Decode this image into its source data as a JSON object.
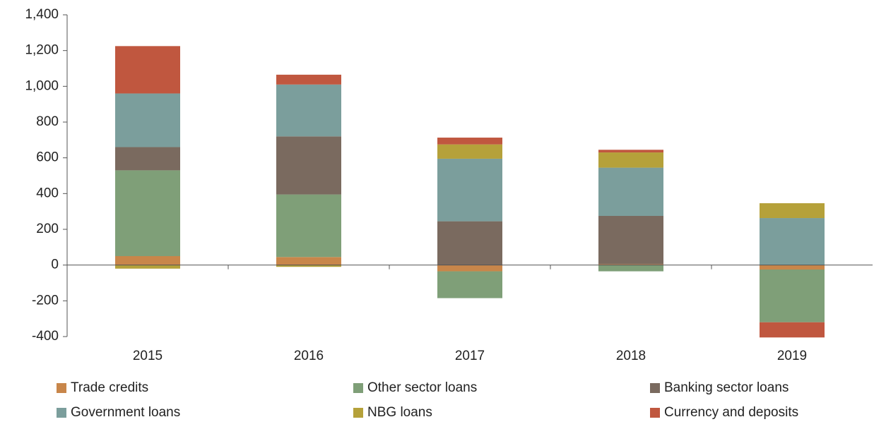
{
  "chart_data": {
    "type": "stacked_bar",
    "categories": [
      "2015",
      "2016",
      "2017",
      "2018",
      "2019"
    ],
    "series": [
      {
        "name": "Trade credits",
        "color": "#c8864a",
        "values": [
          50,
          45,
          -35,
          5,
          -25
        ]
      },
      {
        "name": "Other sector loans",
        "color": "#7f9f78",
        "values": [
          480,
          350,
          -150,
          -35,
          -295
        ]
      },
      {
        "name": "Banking sector loans",
        "color": "#7a6a5f",
        "values": [
          130,
          325,
          245,
          270,
          0
        ]
      },
      {
        "name": "Government loans",
        "color": "#7b9e9c",
        "values": [
          300,
          290,
          350,
          270,
          263
        ]
      },
      {
        "name": "NBG loans",
        "color": "#b5a13a",
        "values": [
          -20,
          -10,
          80,
          85,
          83
        ]
      },
      {
        "name": "Currency and deposits",
        "color": "#c0573f",
        "values": [
          265,
          55,
          38,
          15,
          -85
        ]
      }
    ],
    "ylim": [
      -400,
      1400
    ],
    "yticks": [
      -400,
      -200,
      0,
      200,
      400,
      600,
      800,
      {
        "value": 1000,
        "label": "1,000"
      },
      {
        "value": 1200,
        "label": "1,200"
      },
      {
        "value": 1400,
        "label": "1,400"
      }
    ],
    "grid": false
  }
}
